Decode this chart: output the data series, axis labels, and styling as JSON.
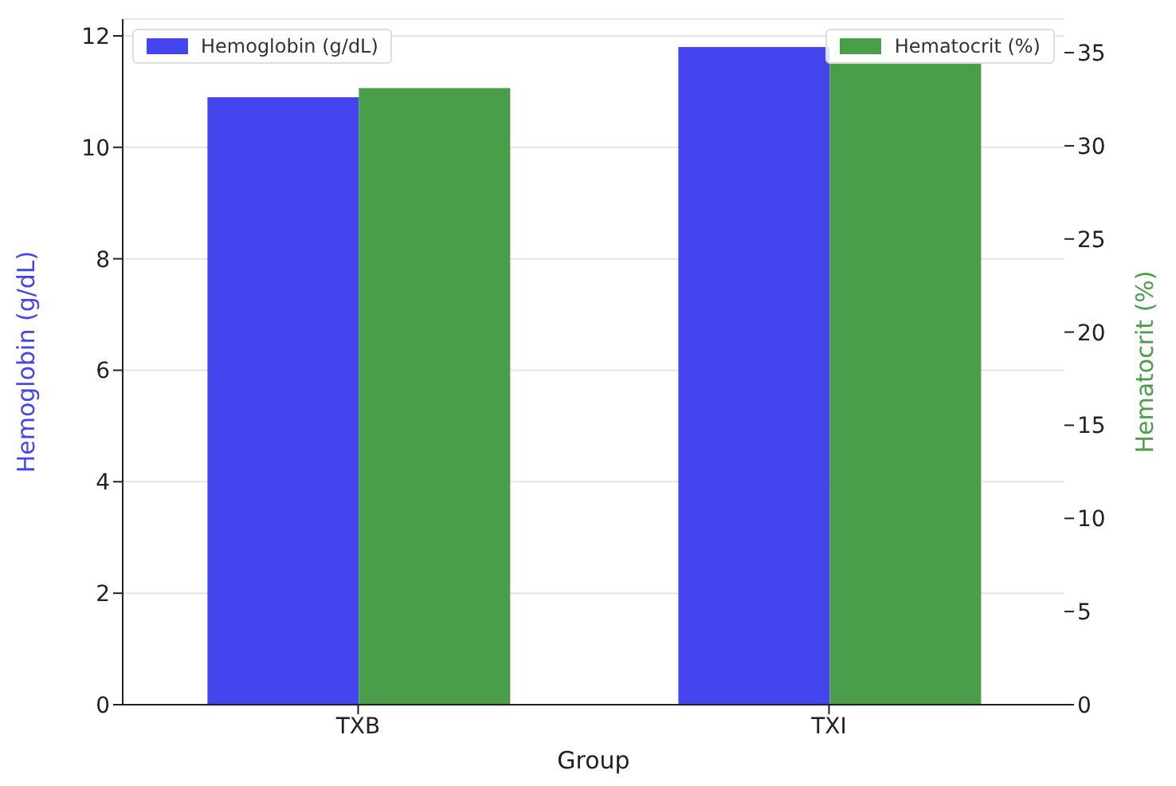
{
  "chart_data": {
    "type": "bar",
    "categories": [
      "TXB",
      "TXI"
    ],
    "xlabel": "Group",
    "ylabel": "Hemoglobin (g/dL)",
    "y2label": "Hematocrit (%)",
    "series": [
      {
        "name": "Hemoglobin (g/dL)",
        "color": "#4545f0",
        "values": [
          10.9,
          11.8
        ]
      },
      {
        "name": "Hematocrit (%)",
        "color": "#4a9e4a",
        "values": [
          33.1,
          34.5
        ],
        "axis": "y2"
      }
    ],
    "ylim": [
      0,
      12.3
    ],
    "yticks": [
      0,
      2,
      4,
      6,
      8,
      10,
      12
    ],
    "y2lim": [
      0,
      36.8
    ],
    "y2ticks": [
      0,
      5,
      10,
      15,
      20,
      25,
      30,
      35
    ],
    "grid": "y",
    "legend": "top"
  }
}
